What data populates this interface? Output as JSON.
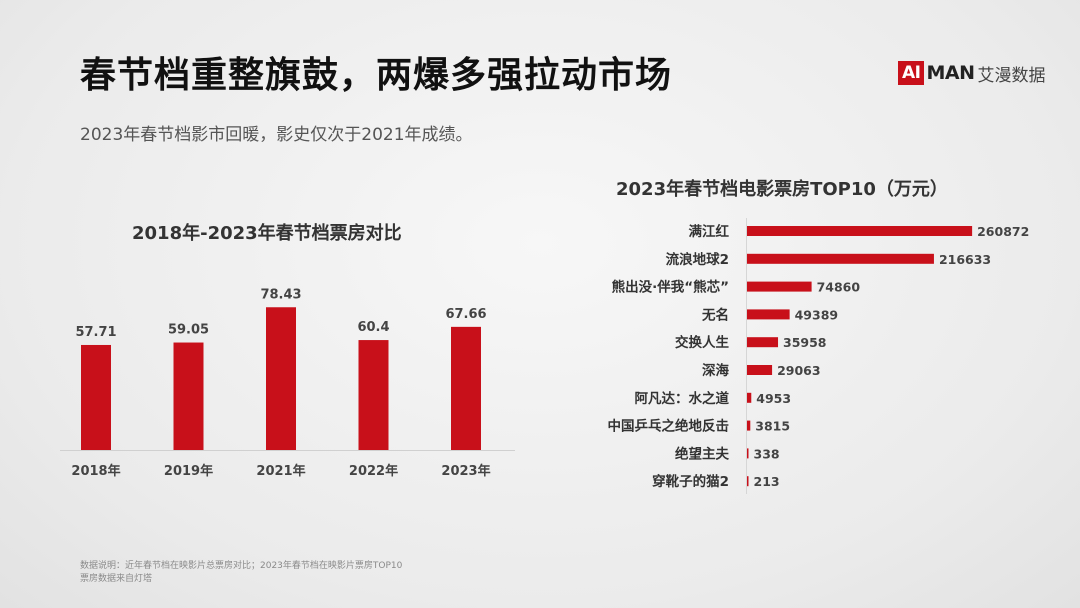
{
  "header": {
    "title": "春节档重整旗鼓，两爆多强拉动市场",
    "subtitle": "2023年春节档影市回暖，影史仅次于2021年成绩。",
    "logo": {
      "ai": "AI",
      "man": "MAN",
      "cn": "艾漫数据",
      "accent_color": "#c8101a"
    }
  },
  "chart_data": [
    {
      "type": "bar",
      "title": "2018年-2023年春节档票房对比",
      "categories": [
        "2018年",
        "2019年",
        "2021年",
        "2022年",
        "2023年"
      ],
      "values": [
        57.71,
        59.05,
        78.43,
        60.4,
        67.66
      ],
      "data_labels": [
        "57.71",
        "59.05",
        "78.43",
        "60.4",
        "67.66"
      ],
      "ylim": [
        0,
        100
      ],
      "grid": false,
      "bar_color": "#c8101a"
    },
    {
      "type": "bar",
      "orientation": "horizontal",
      "title": "2023年春节档电影票房TOP10（万元）",
      "categories": [
        "满江红",
        "流浪地球2",
        "熊出没·伴我“熊芯”",
        "无名",
        "交换人生",
        "深海",
        "阿凡达：水之道",
        "中国乒乓之绝地反击",
        "绝望主夫",
        "穿靴子的猫2"
      ],
      "values": [
        260872,
        216633,
        74860,
        49389,
        35958,
        29063,
        4953,
        3815,
        338,
        213
      ],
      "data_labels": [
        "260872",
        "216633",
        "74860",
        "49389",
        "35958",
        "29063",
        "4953",
        "3815",
        "338",
        "213"
      ],
      "xlim": [
        0,
        270000
      ],
      "grid": false,
      "bar_color": "#c8101a"
    }
  ],
  "footnote": {
    "line1": "数据说明：近年春节档在映影片总票房对比；2023年春节档在映影片票房TOP10",
    "line2": "票房数据来自灯塔"
  }
}
